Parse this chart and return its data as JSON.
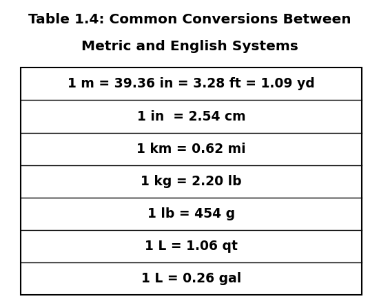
{
  "title_line1": "Table 1.4: Common Conversions Between",
  "title_line2": "Metric and English Systems",
  "rows": [
    "1 m = 39.36 in = 3.28 ft = 1.09 yd",
    "1 in  = 2.54 cm",
    "1 km = 0.62 mi",
    "1 kg = 2.20 lb",
    "1 lb = 454 g",
    "1 L = 1.06 qt",
    "1 L = 0.26 gal"
  ],
  "background_color": "#ffffff",
  "text_color": "#000000",
  "border_color": "#000000",
  "title_fontsize": 14.5,
  "row_fontsize": 13.5,
  "title_font_weight": "bold",
  "row_font_weight": "bold",
  "fig_width": 5.5,
  "fig_height": 4.37,
  "dpi": 100
}
